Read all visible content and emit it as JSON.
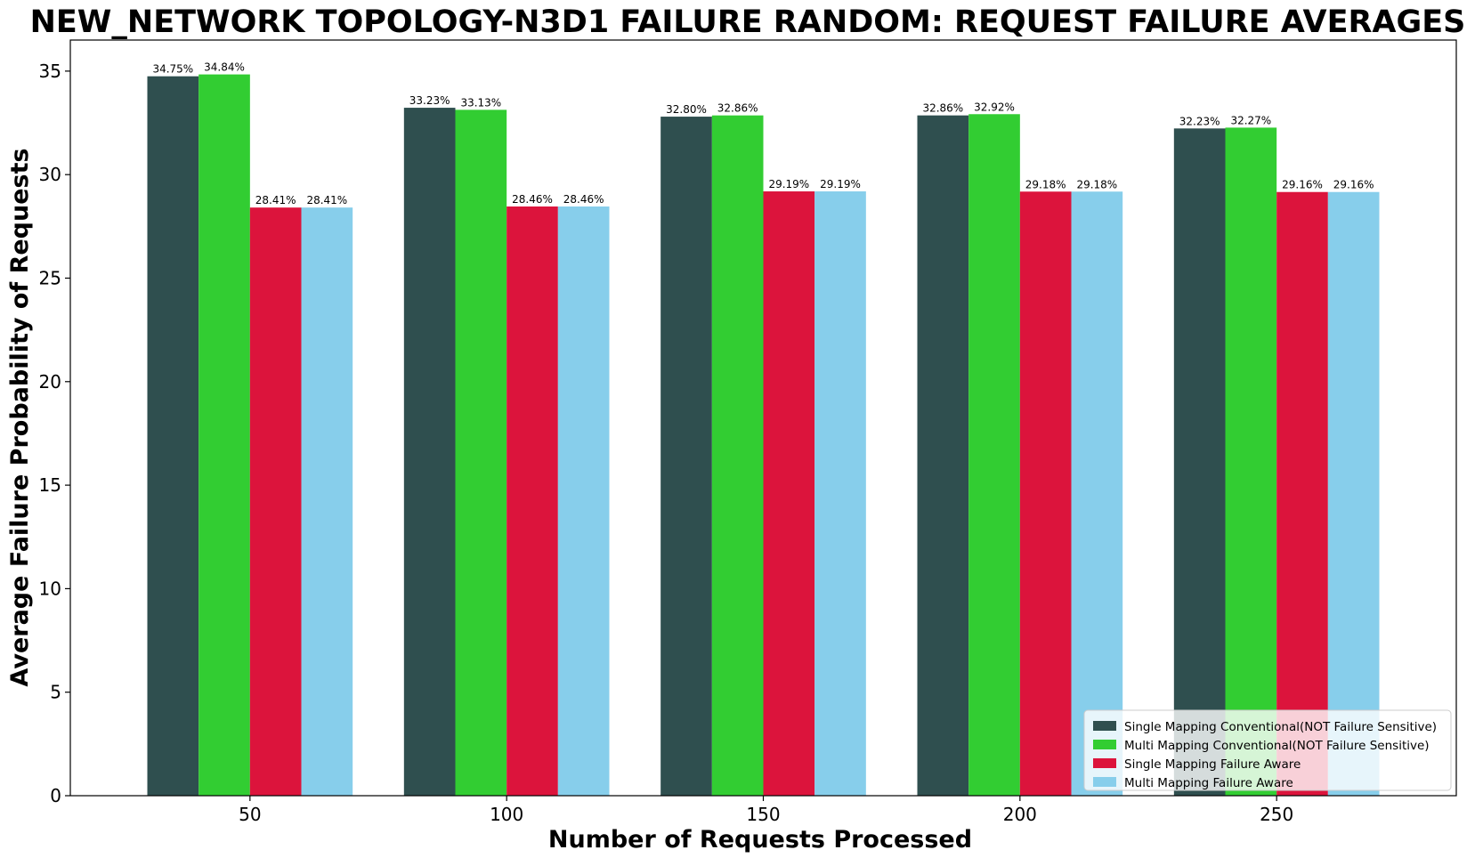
{
  "chart_data": {
    "type": "bar",
    "title": "NEW_NETWORK TOPOLOGY-N3D1 FAILURE RANDOM: REQUEST FAILURE AVERAGES",
    "xlabel": "Number of Requests Processed",
    "ylabel": "Average Failure Probability of Requests",
    "categories": [
      "50",
      "100",
      "150",
      "200",
      "250"
    ],
    "ylim": [
      0,
      36.5
    ],
    "yticks": [
      0,
      5,
      10,
      15,
      20,
      25,
      30,
      35
    ],
    "grid": false,
    "legend_position": "lower-right",
    "series": [
      {
        "name": "Single Mapping Conventional(NOT Failure Sensitive)",
        "color": "#2f4f4f",
        "values": [
          34.75,
          33.23,
          32.8,
          32.86,
          32.23
        ],
        "labels": [
          "34.75%",
          "33.23%",
          "32.80%",
          "32.86%",
          "32.23%"
        ]
      },
      {
        "name": "Multi Mapping Conventional(NOT Failure Sensitive)",
        "color": "#32cd32",
        "values": [
          34.84,
          33.13,
          32.86,
          32.92,
          32.27
        ],
        "labels": [
          "34.84%",
          "33.13%",
          "32.86%",
          "32.92%",
          "32.27%"
        ]
      },
      {
        "name": "Single Mapping Failure Aware",
        "color": "#dc143c",
        "values": [
          28.41,
          28.46,
          29.19,
          29.18,
          29.16
        ],
        "labels": [
          "28.41%",
          "28.46%",
          "29.19%",
          "29.18%",
          "29.16%"
        ]
      },
      {
        "name": "Multi Mapping Failure Aware",
        "color": "#87ceeb",
        "values": [
          28.41,
          28.46,
          29.19,
          29.18,
          29.16
        ],
        "labels": [
          "28.41%",
          "28.46%",
          "29.19%",
          "29.18%",
          "29.16%"
        ]
      }
    ]
  }
}
